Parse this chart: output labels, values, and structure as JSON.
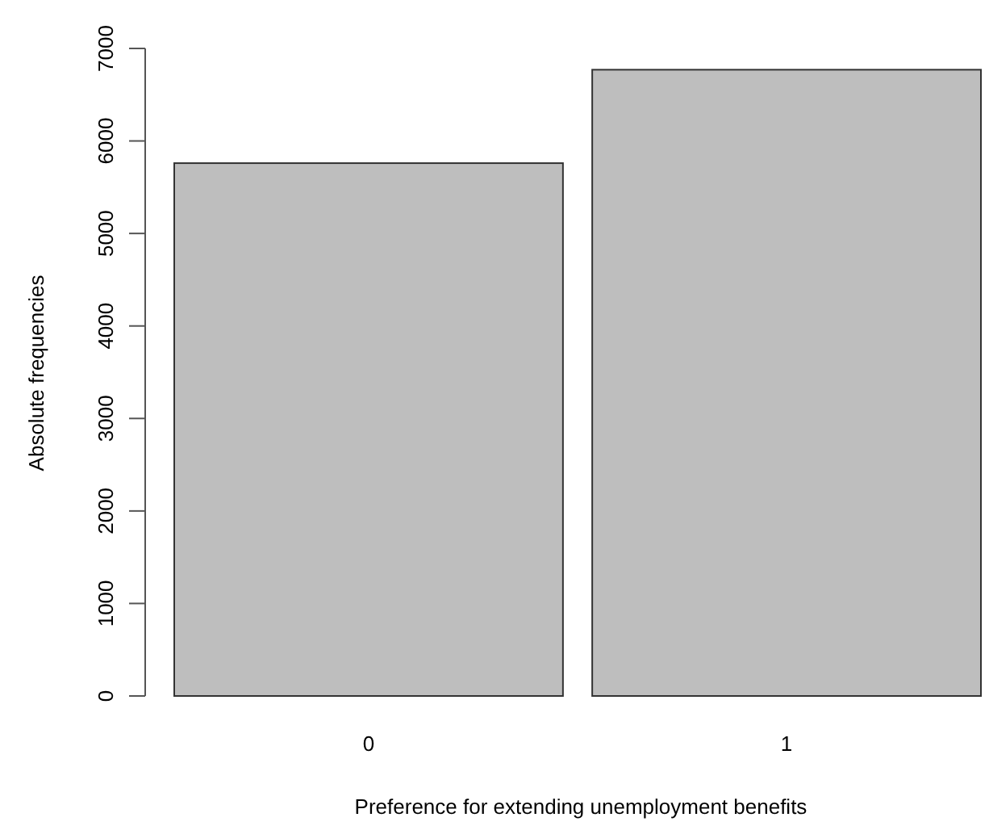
{
  "chart_data": {
    "type": "bar",
    "xlabel": "Preference for extending unemployment benefits",
    "ylabel": "Absolute frequencies",
    "categories": [
      "0",
      "1"
    ],
    "values": [
      5760,
      6770
    ],
    "color": "#bebebe",
    "ylim": [
      0,
      7000
    ],
    "yticks": [
      0,
      1000,
      2000,
      3000,
      4000,
      5000,
      6000,
      7000
    ],
    "grid": false
  }
}
